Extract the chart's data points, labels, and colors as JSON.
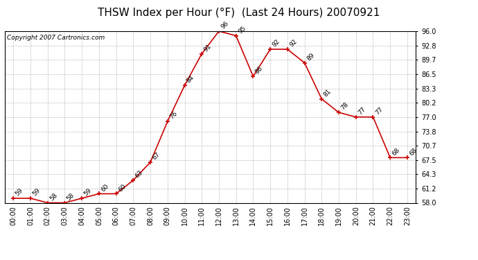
{
  "title": "THSW Index per Hour (°F)  (Last 24 Hours) 20070921",
  "copyright": "Copyright 2007 Cartronics.com",
  "hours": [
    "00:00",
    "01:00",
    "02:00",
    "03:00",
    "04:00",
    "05:00",
    "06:00",
    "07:00",
    "08:00",
    "09:00",
    "10:00",
    "11:00",
    "12:00",
    "13:00",
    "14:00",
    "15:00",
    "16:00",
    "17:00",
    "18:00",
    "19:00",
    "20:00",
    "21:00",
    "22:00",
    "23:00"
  ],
  "values": [
    59,
    59,
    58,
    58,
    59,
    60,
    60,
    63,
    67,
    76,
    84,
    91,
    96,
    95,
    86,
    92,
    92,
    89,
    81,
    78,
    77,
    77,
    68,
    68
  ],
  "ylim": [
    58.0,
    96.0
  ],
  "yticks": [
    58.0,
    61.2,
    64.3,
    67.5,
    70.7,
    73.8,
    77.0,
    80.2,
    83.3,
    86.5,
    89.7,
    92.8,
    96.0
  ],
  "line_color": "#cc0000",
  "marker_color": "#cc0000",
  "grid_color": "#bbbbbb",
  "bg_color": "#ffffff",
  "plot_bg_color": "#ffffff",
  "title_fontsize": 11,
  "label_fontsize": 6.5,
  "tick_fontsize": 7,
  "copyright_fontsize": 6.5
}
